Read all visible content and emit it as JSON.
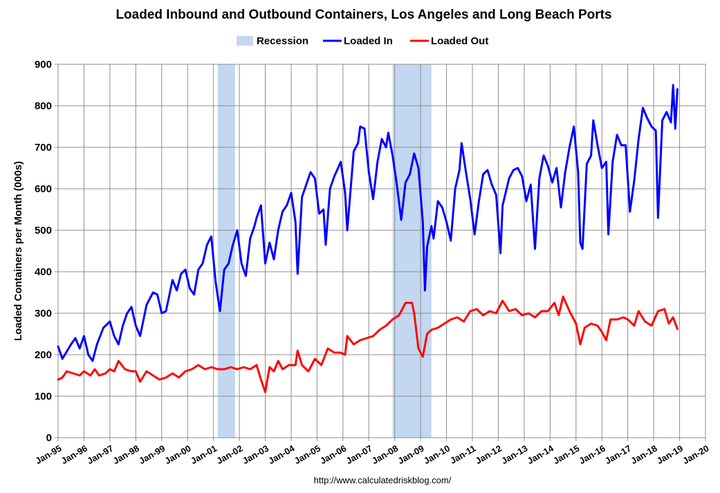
{
  "chart_data": {
    "type": "line",
    "title": "Loaded Inbound and Outbound Containers, Los Angeles and Long Beach Ports",
    "xlabel": "",
    "ylabel": "Loaded Containers per Month (000s)",
    "ylim": [
      0,
      900
    ],
    "yticks": [
      "0",
      "100",
      "200",
      "300",
      "400",
      "500",
      "600",
      "700",
      "800",
      "900"
    ],
    "x_range": [
      "Jan-95",
      "Jan-20"
    ],
    "x_tick_labels": [
      "Jan-95",
      "Jan-96",
      "Jan-97",
      "Jan-98",
      "Jan-99",
      "Jan-00",
      "Jan-01",
      "Jan-02",
      "Jan-03",
      "Jan-04",
      "Jan-05",
      "Jan-06",
      "Jan-07",
      "Jan-08",
      "Jan-09",
      "Jan-10",
      "Jan-11",
      "Jan-12",
      "Jan-13",
      "Jan-14",
      "Jan-15",
      "Jan-16",
      "Jan-17",
      "Jan-18",
      "Jan-19",
      "Jan-20"
    ],
    "grid": true,
    "legend_position": "top-center",
    "legend": [
      "Recession",
      "Loaded In",
      "Loaded Out"
    ],
    "recessions": [
      {
        "start": "Mar-01",
        "end": "Nov-01"
      },
      {
        "start": "Dec-07",
        "end": "Jun-09"
      }
    ],
    "series": [
      {
        "name": "Loaded In",
        "color": "#0000ff",
        "points": [
          [
            "Jan-95",
            220
          ],
          [
            "Mar-95",
            190
          ],
          [
            "Jul-95",
            225
          ],
          [
            "Sep-95",
            240
          ],
          [
            "Nov-95",
            215
          ],
          [
            "Jan-96",
            245
          ],
          [
            "Mar-96",
            200
          ],
          [
            "May-96",
            185
          ],
          [
            "Jul-96",
            225
          ],
          [
            "Oct-96",
            265
          ],
          [
            "Jan-97",
            280
          ],
          [
            "Mar-97",
            245
          ],
          [
            "May-97",
            225
          ],
          [
            "Jul-97",
            270
          ],
          [
            "Sep-97",
            300
          ],
          [
            "Nov-97",
            315
          ],
          [
            "Jan-98",
            270
          ],
          [
            "Mar-98",
            245
          ],
          [
            "Jun-98",
            320
          ],
          [
            "Sep-98",
            350
          ],
          [
            "Nov-98",
            345
          ],
          [
            "Jan-99",
            300
          ],
          [
            "Mar-99",
            305
          ],
          [
            "Jun-99",
            380
          ],
          [
            "Aug-99",
            355
          ],
          [
            "Oct-99",
            395
          ],
          [
            "Dec-99",
            405
          ],
          [
            "Feb-00",
            360
          ],
          [
            "Apr-00",
            345
          ],
          [
            "Jun-00",
            405
          ],
          [
            "Aug-00",
            420
          ],
          [
            "Oct-00",
            465
          ],
          [
            "Dec-00",
            485
          ],
          [
            "Feb-01",
            375
          ],
          [
            "Apr-01",
            305
          ],
          [
            "Jun-01",
            405
          ],
          [
            "Aug-01",
            420
          ],
          [
            "Oct-01",
            465
          ],
          [
            "Dec-01",
            500
          ],
          [
            "Feb-02",
            420
          ],
          [
            "Apr-02",
            390
          ],
          [
            "Jun-02",
            480
          ],
          [
            "Aug-02",
            510
          ],
          [
            "Sep-02",
            530
          ],
          [
            "Nov-02",
            560
          ],
          [
            "Jan-03",
            420
          ],
          [
            "Mar-03",
            470
          ],
          [
            "May-03",
            430
          ],
          [
            "Jul-03",
            500
          ],
          [
            "Sep-03",
            545
          ],
          [
            "Nov-03",
            560
          ],
          [
            "Jan-04",
            590
          ],
          [
            "Mar-04",
            520
          ],
          [
            "Apr-04",
            395
          ],
          [
            "Jun-04",
            580
          ],
          [
            "Aug-04",
            610
          ],
          [
            "Oct-04",
            640
          ],
          [
            "Dec-04",
            625
          ],
          [
            "Feb-05",
            540
          ],
          [
            "Apr-05",
            550
          ],
          [
            "May-05",
            465
          ],
          [
            "Jul-05",
            600
          ],
          [
            "Sep-05",
            630
          ],
          [
            "Dec-05",
            665
          ],
          [
            "Feb-06",
            590
          ],
          [
            "Mar-06",
            500
          ],
          [
            "Jun-06",
            690
          ],
          [
            "Aug-06",
            710
          ],
          [
            "Sep-06",
            750
          ],
          [
            "Nov-06",
            745
          ],
          [
            "Jan-07",
            640
          ],
          [
            "Mar-07",
            575
          ],
          [
            "May-07",
            665
          ],
          [
            "Jul-07",
            720
          ],
          [
            "Sep-07",
            700
          ],
          [
            "Oct-07",
            735
          ],
          [
            "Dec-07",
            680
          ],
          [
            "Feb-08",
            610
          ],
          [
            "Apr-08",
            525
          ],
          [
            "Jun-08",
            615
          ],
          [
            "Aug-08",
            635
          ],
          [
            "Oct-08",
            685
          ],
          [
            "Dec-08",
            650
          ],
          [
            "Feb-09",
            520
          ],
          [
            "Mar-09",
            355
          ],
          [
            "Apr-09",
            460
          ],
          [
            "Jun-09",
            510
          ],
          [
            "Jul-09",
            480
          ],
          [
            "Sep-09",
            570
          ],
          [
            "Nov-09",
            555
          ],
          [
            "Jan-10",
            520
          ],
          [
            "Mar-10",
            475
          ],
          [
            "May-10",
            600
          ],
          [
            "Jul-10",
            645
          ],
          [
            "Aug-10",
            710
          ],
          [
            "Oct-10",
            640
          ],
          [
            "Dec-10",
            575
          ],
          [
            "Feb-11",
            490
          ],
          [
            "Apr-11",
            570
          ],
          [
            "Jun-11",
            635
          ],
          [
            "Aug-11",
            645
          ],
          [
            "Oct-11",
            610
          ],
          [
            "Dec-11",
            585
          ],
          [
            "Feb-12",
            445
          ],
          [
            "Mar-12",
            560
          ],
          [
            "Jun-12",
            625
          ],
          [
            "Aug-12",
            645
          ],
          [
            "Oct-12",
            650
          ],
          [
            "Dec-12",
            630
          ],
          [
            "Feb-13",
            570
          ],
          [
            "Apr-13",
            610
          ],
          [
            "Jun-13",
            455
          ],
          [
            "Aug-13",
            625
          ],
          [
            "Oct-13",
            680
          ],
          [
            "Dec-13",
            655
          ],
          [
            "Feb-14",
            615
          ],
          [
            "Apr-14",
            650
          ],
          [
            "Jun-14",
            555
          ],
          [
            "Aug-14",
            640
          ],
          [
            "Oct-14",
            700
          ],
          [
            "Dec-14",
            750
          ],
          [
            "Feb-15",
            640
          ],
          [
            "Mar-15",
            470
          ],
          [
            "Apr-15",
            455
          ],
          [
            "Jun-15",
            660
          ],
          [
            "Aug-15",
            680
          ],
          [
            "Sep-15",
            765
          ],
          [
            "Nov-15",
            705
          ],
          [
            "Jan-16",
            650
          ],
          [
            "Mar-16",
            665
          ],
          [
            "Apr-16",
            490
          ],
          [
            "Jun-16",
            665
          ],
          [
            "Aug-16",
            730
          ],
          [
            "Oct-16",
            705
          ],
          [
            "Dec-16",
            705
          ],
          [
            "Feb-17",
            545
          ],
          [
            "Apr-17",
            620
          ],
          [
            "Jun-17",
            720
          ],
          [
            "Aug-17",
            795
          ],
          [
            "Oct-17",
            770
          ],
          [
            "Dec-17",
            750
          ],
          [
            "Feb-18",
            740
          ],
          [
            "Mar-18",
            530
          ],
          [
            "May-18",
            765
          ],
          [
            "Jul-18",
            785
          ],
          [
            "Sep-18",
            760
          ],
          [
            "Oct-18",
            850
          ],
          [
            "Nov-18",
            745
          ],
          [
            "Dec-18",
            840
          ]
        ]
      },
      {
        "name": "Loaded Out",
        "color": "#ff0000",
        "points": [
          [
            "Jan-95",
            140
          ],
          [
            "Mar-95",
            145
          ],
          [
            "May-95",
            160
          ],
          [
            "Aug-95",
            155
          ],
          [
            "Nov-95",
            150
          ],
          [
            "Jan-96",
            160
          ],
          [
            "Apr-96",
            150
          ],
          [
            "Jun-96",
            165
          ],
          [
            "Aug-96",
            150
          ],
          [
            "Nov-96",
            155
          ],
          [
            "Jan-97",
            165
          ],
          [
            "Mar-97",
            160
          ],
          [
            "May-97",
            185
          ],
          [
            "Aug-97",
            165
          ],
          [
            "Nov-97",
            160
          ],
          [
            "Jan-98",
            160
          ],
          [
            "Mar-98",
            135
          ],
          [
            "Jun-98",
            160
          ],
          [
            "Sep-98",
            150
          ],
          [
            "Dec-98",
            140
          ],
          [
            "Mar-99",
            145
          ],
          [
            "Jun-99",
            155
          ],
          [
            "Sep-99",
            145
          ],
          [
            "Dec-99",
            160
          ],
          [
            "Mar-00",
            165
          ],
          [
            "Jun-00",
            175
          ],
          [
            "Sep-00",
            165
          ],
          [
            "Dec-00",
            170
          ],
          [
            "Mar-01",
            165
          ],
          [
            "Jun-01",
            165
          ],
          [
            "Sep-01",
            170
          ],
          [
            "Dec-01",
            165
          ],
          [
            "Mar-02",
            170
          ],
          [
            "Jun-02",
            165
          ],
          [
            "Sep-02",
            175
          ],
          [
            "Nov-02",
            140
          ],
          [
            "Jan-03",
            110
          ],
          [
            "Mar-03",
            170
          ],
          [
            "May-03",
            160
          ],
          [
            "Jul-03",
            185
          ],
          [
            "Sep-03",
            165
          ],
          [
            "Dec-03",
            175
          ],
          [
            "Mar-04",
            175
          ],
          [
            "Apr-04",
            210
          ],
          [
            "Jun-04",
            175
          ],
          [
            "Sep-04",
            160
          ],
          [
            "Dec-04",
            190
          ],
          [
            "Mar-05",
            175
          ],
          [
            "Jun-05",
            215
          ],
          [
            "Sep-05",
            205
          ],
          [
            "Dec-05",
            205
          ],
          [
            "Feb-06",
            200
          ],
          [
            "Mar-06",
            245
          ],
          [
            "Jun-06",
            225
          ],
          [
            "Sep-06",
            235
          ],
          [
            "Dec-06",
            240
          ],
          [
            "Mar-07",
            245
          ],
          [
            "Jun-07",
            260
          ],
          [
            "Sep-07",
            270
          ],
          [
            "Dec-07",
            285
          ],
          [
            "Mar-08",
            295
          ],
          [
            "Jun-08",
            325
          ],
          [
            "Sep-08",
            325
          ],
          [
            "Oct-08",
            300
          ],
          [
            "Dec-08",
            215
          ],
          [
            "Feb-09",
            195
          ],
          [
            "Apr-09",
            250
          ],
          [
            "Jun-09",
            260
          ],
          [
            "Sep-09",
            265
          ],
          [
            "Dec-09",
            275
          ],
          [
            "Mar-10",
            285
          ],
          [
            "Jun-10",
            290
          ],
          [
            "Sep-10",
            280
          ],
          [
            "Dec-10",
            305
          ],
          [
            "Mar-11",
            310
          ],
          [
            "Jun-11",
            295
          ],
          [
            "Sep-11",
            305
          ],
          [
            "Dec-11",
            300
          ],
          [
            "Mar-12",
            330
          ],
          [
            "Jun-12",
            305
          ],
          [
            "Sep-12",
            310
          ],
          [
            "Dec-12",
            295
          ],
          [
            "Mar-13",
            300
          ],
          [
            "Jun-13",
            290
          ],
          [
            "Sep-13",
            305
          ],
          [
            "Dec-13",
            305
          ],
          [
            "Mar-14",
            325
          ],
          [
            "May-14",
            295
          ],
          [
            "Jul-14",
            340
          ],
          [
            "Oct-14",
            305
          ],
          [
            "Jan-15",
            275
          ],
          [
            "Mar-15",
            225
          ],
          [
            "May-15",
            265
          ],
          [
            "Aug-15",
            275
          ],
          [
            "Nov-15",
            270
          ],
          [
            "Jan-16",
            255
          ],
          [
            "Mar-16",
            235
          ],
          [
            "May-16",
            285
          ],
          [
            "Aug-16",
            285
          ],
          [
            "Nov-16",
            290
          ],
          [
            "Jan-17",
            285
          ],
          [
            "Apr-17",
            270
          ],
          [
            "Jun-17",
            305
          ],
          [
            "Sep-17",
            280
          ],
          [
            "Dec-17",
            270
          ],
          [
            "Mar-18",
            305
          ],
          [
            "Jun-18",
            310
          ],
          [
            "Aug-18",
            275
          ],
          [
            "Oct-18",
            290
          ],
          [
            "Dec-18",
            262
          ]
        ]
      }
    ],
    "source": "http://www.calculatedriskblog.com/"
  }
}
